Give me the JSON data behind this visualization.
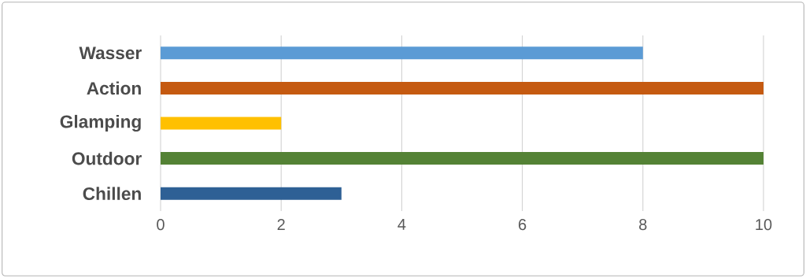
{
  "chart_data": {
    "type": "bar",
    "orientation": "horizontal",
    "categories": [
      "Wasser",
      "Action",
      "Glamping",
      "Outdoor",
      "Chillen"
    ],
    "values": [
      8,
      10,
      2,
      10,
      3
    ],
    "colors": [
      "#5b9bd5",
      "#c55a11",
      "#ffc000",
      "#548235",
      "#2e6095"
    ],
    "xlim": [
      0,
      10
    ],
    "xticks": [
      0,
      2,
      4,
      6,
      8,
      10
    ],
    "grid": "x"
  }
}
